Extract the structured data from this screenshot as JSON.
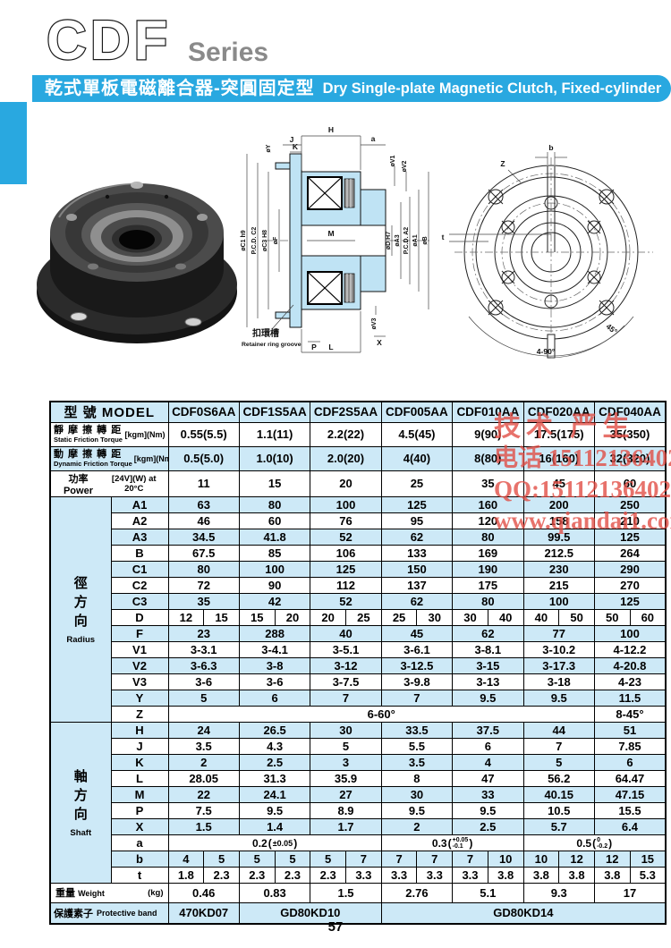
{
  "colors": {
    "accent": "#29a8e0",
    "table_row_blue": "#cde9f7",
    "watermark_red": "#e14b42",
    "title_gray": "#8a8a8a"
  },
  "header": {
    "title": "CDF",
    "subtitle": "Series",
    "banner_zh": "乾式單板電磁離合器-突圓固定型",
    "banner_en": "Dry Single-plate Magnetic Clutch, Fixed-cylinder"
  },
  "watermark": {
    "line1": "技术 严生",
    "line2": "电话 15112136402",
    "line3": "QQ:15112136402",
    "line4": "www.qiandai1.com"
  },
  "drawings": {
    "section": {
      "top": {
        "h": "H",
        "j": "J",
        "k": "K",
        "y": "øY",
        "a": "a"
      },
      "right_top": {
        "v1": "øV1",
        "v2": "øV2"
      },
      "left": {
        "c1": "øC1 h9",
        "c2": "P.C.D. C2",
        "c3": "øC3 H8",
        "f": "øF"
      },
      "center": {
        "m": "M"
      },
      "right": {
        "d": "øD H7",
        "a3": "øA3",
        "a2": "P.C.D. A2",
        "a1": "øA1",
        "b": "øB"
      },
      "bottom": {
        "v3": "øV3",
        "x": "X",
        "p": "P",
        "l": "L"
      },
      "retainer_zh": "扣環槽",
      "retainer_en": "Retainer ring groove"
    },
    "front": {
      "b": "b",
      "z": "Z",
      "t": "t",
      "deg45": "45°",
      "deg490": "4-90°"
    }
  },
  "table": {
    "model_header": "型 號 MODEL",
    "models": [
      "CDF0S6AA",
      "CDF1S5AA",
      "CDF2S5AA",
      "CDF005AA",
      "CDF010AA",
      "CDF020AA",
      "CDF040AA"
    ],
    "spec_rows": [
      {
        "zh": "靜 摩 擦 轉 距",
        "en": "Static Friction Torque",
        "unit": "[kgm](Nm)",
        "values": [
          "0.55(5.5)",
          "1.1(11)",
          "2.2(22)",
          "4.5(45)",
          "9(90)",
          "17.5(175)",
          "35(350)"
        ]
      },
      {
        "zh": "動 摩 擦 轉 距",
        "en": "Dynamic Friction Torque",
        "unit": "[kgm](Nm)",
        "values": [
          "0.5(5.0)",
          "1.0(10)",
          "2.0(20)",
          "4(40)",
          "8(80)",
          "16(160)",
          "32(320)"
        ]
      }
    ],
    "power_row": {
      "label": "功率 Power",
      "unit": "[24V](W) at 20°C",
      "values": [
        "11",
        "15",
        "20",
        "25",
        "35",
        "45",
        "60"
      ]
    },
    "radius_group": {
      "zh": "徑方向",
      "en": "Radius"
    },
    "shaft_group": {
      "zh": "軸方向",
      "en": "Shaft"
    },
    "radius_rows": [
      {
        "label": "A1",
        "values": [
          "63",
          "80",
          "100",
          "125",
          "160",
          "200",
          "250"
        ]
      },
      {
        "label": "A2",
        "values": [
          "46",
          "60",
          "76",
          "95",
          "120",
          "158",
          "210"
        ]
      },
      {
        "label": "A3",
        "values": [
          "34.5",
          "41.8",
          "52",
          "62",
          "80",
          "99.5",
          "125"
        ]
      },
      {
        "label": "B",
        "values": [
          "67.5",
          "85",
          "106",
          "133",
          "169",
          "212.5",
          "264"
        ]
      },
      {
        "label": "C1",
        "values": [
          "80",
          "100",
          "125",
          "150",
          "190",
          "230",
          "290"
        ]
      },
      {
        "label": "C2",
        "values": [
          "72",
          "90",
          "112",
          "137",
          "175",
          "215",
          "270"
        ]
      },
      {
        "label": "C3",
        "values": [
          "35",
          "42",
          "52",
          "62",
          "80",
          "100",
          "125"
        ]
      },
      {
        "label": "D",
        "split": [
          "12",
          "15",
          "15",
          "20",
          "20",
          "25",
          "25",
          "30",
          "30",
          "40",
          "40",
          "50",
          "50",
          "60"
        ]
      },
      {
        "label": "F",
        "values": [
          "23",
          "288",
          "40",
          "45",
          "62",
          "77",
          "100"
        ]
      },
      {
        "label": "V1",
        "values": [
          "3-3.1",
          "3-4.1",
          "3-5.1",
          "3-6.1",
          "3-8.1",
          "3-10.2",
          "4-12.2"
        ]
      },
      {
        "label": "V2",
        "values": [
          "3-6.3",
          "3-8",
          "3-12",
          "3-12.5",
          "3-15",
          "3-17.3",
          "4-20.8"
        ]
      },
      {
        "label": "V3",
        "values": [
          "3-6",
          "3-6",
          "3-7.5",
          "3-9.8",
          "3-13",
          "3-18",
          "4-23"
        ]
      },
      {
        "label": "Y",
        "values": [
          "5",
          "6",
          "7",
          "7",
          "9.5",
          "9.5",
          "11.5"
        ]
      },
      {
        "label": "Z",
        "spans": [
          {
            "span": 6,
            "text": "6-60°"
          },
          {
            "span": 1,
            "text": "8-45°"
          }
        ]
      }
    ],
    "shaft_rows": [
      {
        "label": "H",
        "values": [
          "24",
          "26.5",
          "30",
          "33.5",
          "37.5",
          "44",
          "51"
        ]
      },
      {
        "label": "J",
        "values": [
          "3.5",
          "4.3",
          "5",
          "5.5",
          "6",
          "7",
          "7.85"
        ]
      },
      {
        "label": "K",
        "values": [
          "2",
          "2.5",
          "3",
          "3.5",
          "4",
          "5",
          "6"
        ]
      },
      {
        "label": "L",
        "values": [
          "28.05",
          "31.3",
          "35.9",
          "8",
          "47",
          "56.2",
          "64.47"
        ]
      },
      {
        "label": "M",
        "values": [
          "22",
          "24.1",
          "27",
          "30",
          "33",
          "40.15",
          "47.15"
        ]
      },
      {
        "label": "P",
        "values": [
          "7.5",
          "9.5",
          "8.9",
          "9.5",
          "9.5",
          "10.5",
          "15.5"
        ]
      },
      {
        "label": "X",
        "values": [
          "1.5",
          "1.4",
          "1.7",
          "2",
          "2.5",
          "5.7",
          "6.4"
        ]
      },
      {
        "label": "a",
        "tol": [
          {
            "span": 3,
            "main": "0.2",
            "tol": "±0.05"
          },
          {
            "span": 2,
            "main": "0.3",
            "top": "+0.05",
            "bot": "-0.1"
          },
          {
            "span": 2,
            "main": "0.5",
            "top": "0",
            "bot": "-0.2"
          }
        ]
      },
      {
        "label": "b",
        "split": [
          "4",
          "5",
          "5",
          "5",
          "5",
          "7",
          "7",
          "7",
          "7",
          "10",
          "10",
          "12",
          "12",
          "15"
        ]
      },
      {
        "label": "t",
        "split": [
          "1.8",
          "2.3",
          "2.3",
          "2.3",
          "2.3",
          "3.3",
          "3.3",
          "3.3",
          "3.3",
          "3.8",
          "3.8",
          "3.8",
          "3.8",
          "5.3"
        ]
      }
    ],
    "weight_row": {
      "zh": "重量",
      "en": "Weight",
      "unit": "(kg)",
      "values": [
        "0.46",
        "0.83",
        "1.5",
        "2.76",
        "5.1",
        "9.3",
        "17"
      ]
    },
    "band_row": {
      "zh": "保護素子",
      "en": "Protective band",
      "spans": [
        {
          "span": 1,
          "text": "470KD07"
        },
        {
          "span": 2,
          "text": "GD80KD10"
        },
        {
          "span": 4,
          "text": "GD80KD14"
        }
      ]
    }
  },
  "page_number": "57"
}
